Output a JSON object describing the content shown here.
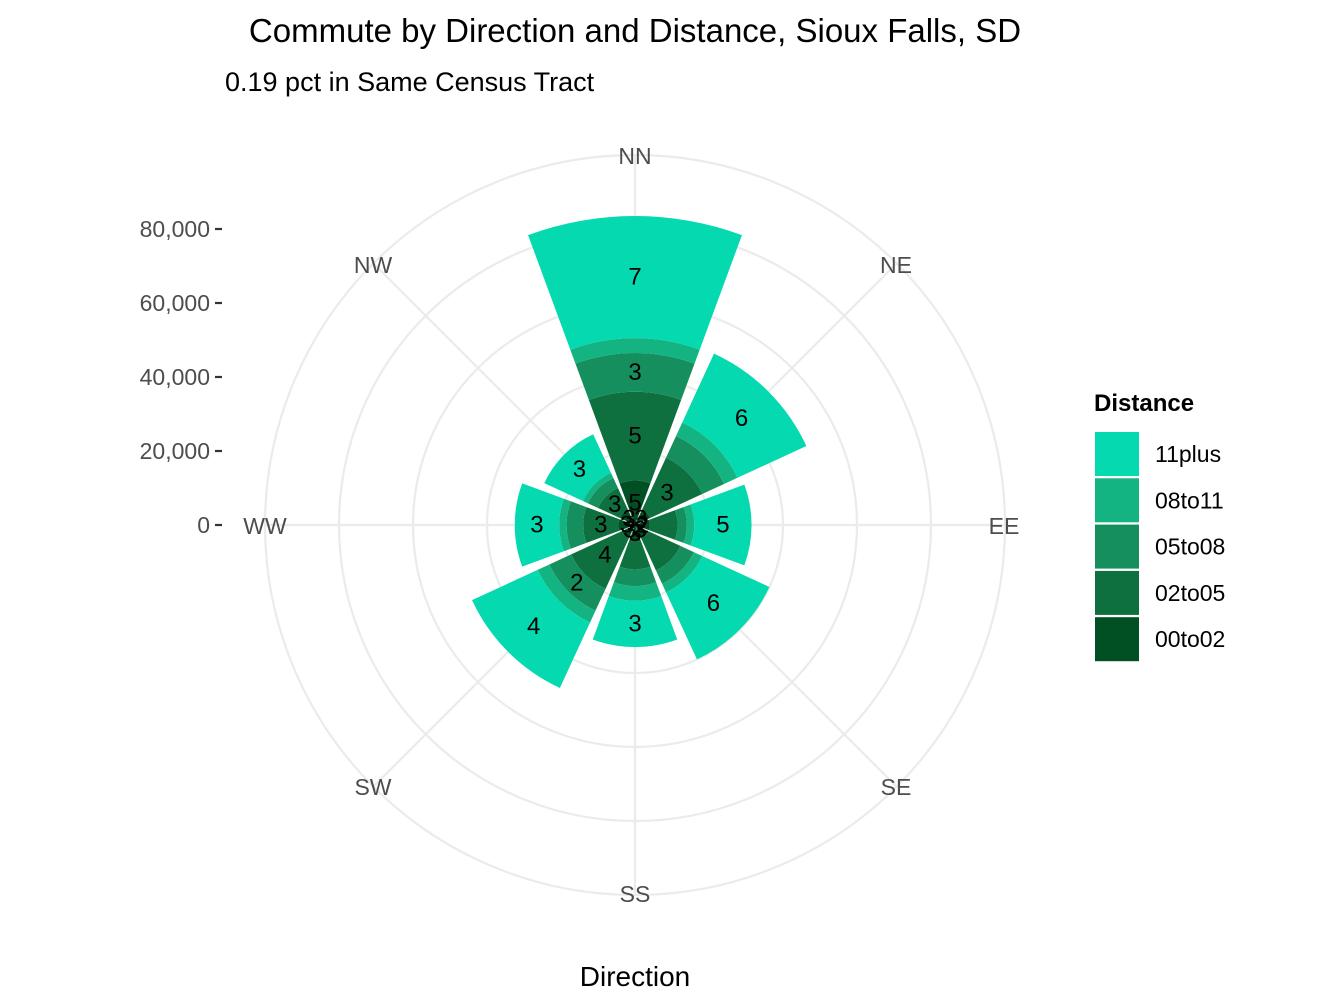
{
  "chart_data": {
    "type": "bar",
    "coord": "polar",
    "title": "Commute by Direction and Distance, Sioux Falls, SD",
    "subtitle": "0.19 pct in Same Census Tract",
    "xlabel": "Direction",
    "ylabel": "",
    "categories": [
      "NN",
      "NE",
      "EE",
      "SE",
      "SS",
      "SW",
      "WW",
      "NW"
    ],
    "ylim": [
      0,
      80000
    ],
    "y_ticks": [
      0,
      20000,
      40000,
      60000,
      80000
    ],
    "y_tick_labels": [
      "0",
      "20,000",
      "40,000",
      "60,000",
      "80,000"
    ],
    "legend": {
      "title": "Distance",
      "position": "right"
    },
    "stack_order": [
      "00to02",
      "02to05",
      "05to08",
      "08to11",
      "11plus"
    ],
    "legend_order": [
      "11plus",
      "08to11",
      "05to08",
      "02to05",
      "00to02"
    ],
    "colors": {
      "00to02": "#005023",
      "02to05": "#0e703e",
      "05to08": "#168f5e",
      "08to11": "#13b481",
      "11plus": "#04d9b0"
    },
    "series": [
      {
        "name": "00to02",
        "values": [
          12000,
          4500,
          4000,
          4000,
          4500,
          4000,
          4500,
          4500
        ],
        "labels": [
          "5",
          "3",
          "2",
          "3",
          "3",
          "3",
          "3",
          "3"
        ]
      },
      {
        "name": "02to05",
        "values": [
          24000,
          15500,
          7500,
          9500,
          7500,
          15000,
          9500,
          6500
        ],
        "labels": [
          "5",
          "3",
          "",
          "",
          "",
          "4",
          "3",
          "3"
        ]
      },
      {
        "name": "05to08",
        "values": [
          10500,
          6500,
          2500,
          4000,
          4500,
          6500,
          4500,
          3000
        ],
        "labels": [
          "3",
          "",
          "",
          "",
          "",
          "2",
          "",
          ""
        ]
      },
      {
        "name": "08to11",
        "values": [
          4000,
          4000,
          2000,
          2500,
          4000,
          3500,
          2000,
          1500
        ],
        "labels": [
          "",
          "",
          "",
          "",
          "",
          "",
          "",
          ""
        ]
      },
      {
        "name": "11plus",
        "values": [
          33000,
          20500,
          15500,
          20000,
          12500,
          19500,
          12000,
          11500
        ],
        "labels": [
          "7",
          "6",
          "5",
          "6",
          "3",
          "4",
          "3",
          "3"
        ]
      }
    ],
    "grid": true
  }
}
